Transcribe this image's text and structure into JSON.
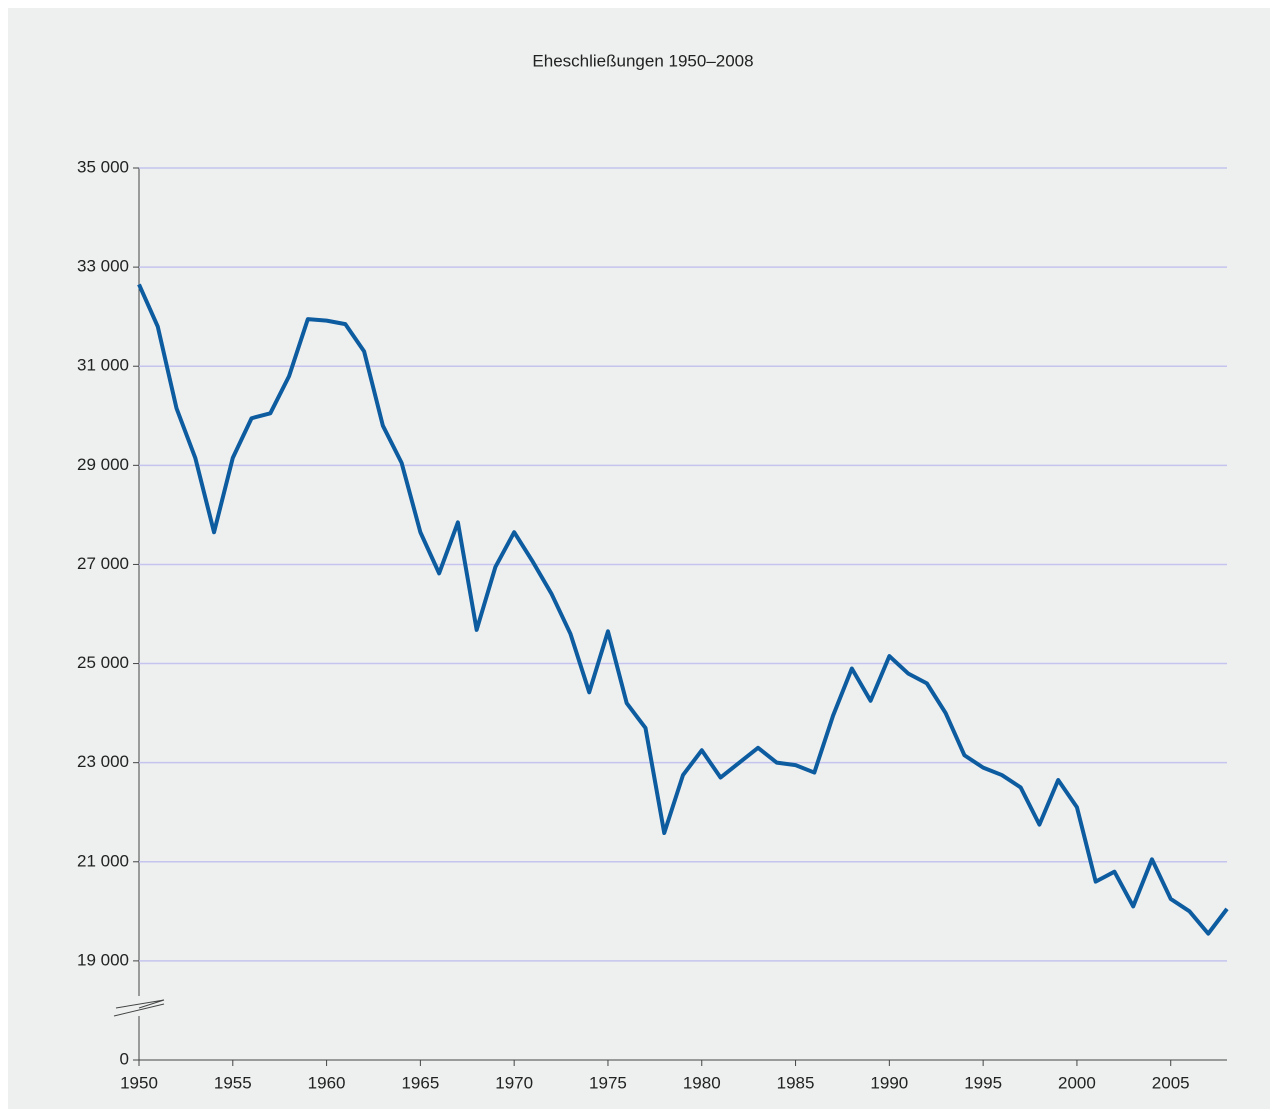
{
  "chart_data": {
    "type": "line",
    "title": "Eheschließungen 1950–2008",
    "x": [
      1950,
      1951,
      1952,
      1953,
      1954,
      1955,
      1956,
      1957,
      1958,
      1959,
      1960,
      1961,
      1962,
      1963,
      1964,
      1965,
      1966,
      1967,
      1968,
      1969,
      1970,
      1971,
      1972,
      1973,
      1974,
      1975,
      1976,
      1977,
      1978,
      1979,
      1980,
      1981,
      1982,
      1983,
      1984,
      1985,
      1986,
      1987,
      1988,
      1989,
      1990,
      1991,
      1992,
      1993,
      1994,
      1995,
      1996,
      1997,
      1998,
      1999,
      2000,
      2001,
      2002,
      2003,
      2004,
      2005,
      2006,
      2007,
      2008
    ],
    "series": [
      {
        "name": "Eheschließungen",
        "color": "#0d5ca0",
        "values": [
          32650,
          31800,
          30150,
          29150,
          27650,
          29150,
          29950,
          30050,
          30800,
          31950,
          31920,
          31850,
          31300,
          29800,
          29050,
          27650,
          26820,
          27850,
          25680,
          26950,
          27650,
          27050,
          26400,
          25600,
          24420,
          25650,
          24200,
          23700,
          21580,
          22750,
          23250,
          22700,
          23000,
          23300,
          23000,
          22950,
          22800,
          23950,
          24900,
          24250,
          25150,
          24800,
          24600,
          24000,
          23150,
          22900,
          22750,
          22500,
          21750,
          22650,
          22100,
          20600,
          20800,
          20100,
          21050,
          20250,
          20000,
          19550,
          20050
        ]
      }
    ],
    "xlim": [
      1950,
      2008
    ],
    "xticks": [
      1950,
      1955,
      1960,
      1965,
      1970,
      1975,
      1980,
      1985,
      1990,
      1995,
      2000,
      2005
    ],
    "ylim": [
      0,
      35000
    ],
    "ybreak": [
      0,
      17000
    ],
    "yticks": [
      0,
      {
        "value": 19000,
        "label": "19 000"
      },
      {
        "value": 21000,
        "label": "21 000"
      },
      {
        "value": 23000,
        "label": "23 000"
      },
      {
        "value": 25000,
        "label": "25 000"
      },
      {
        "value": 27000,
        "label": "27 000"
      },
      {
        "value": 29000,
        "label": "29 000"
      },
      {
        "value": 31000,
        "label": "31 000"
      },
      {
        "value": 33000,
        "label": "33 000"
      },
      {
        "value": 35000,
        "label": "35 000"
      }
    ],
    "grid": true
  }
}
